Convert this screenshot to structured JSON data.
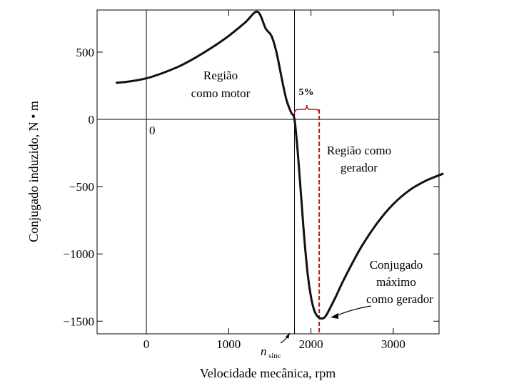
{
  "chart_data": {
    "type": "line",
    "title": "",
    "xlabel": "Velocidade mecânica, rpm",
    "ylabel": "Conjugado induzido, N • m",
    "xlim": [
      -600,
      3600
    ],
    "ylim": [
      -1600,
      820
    ],
    "x_ticks": [
      0,
      1000,
      2000,
      3000
    ],
    "x_tick_labels": [
      "0",
      "1000",
      "2000",
      "3000"
    ],
    "y_ticks": [
      500,
      0,
      -500,
      -1000,
      -1500
    ],
    "y_tick_labels": [
      "500",
      "0",
      "−500",
      "−1000",
      "−1500"
    ],
    "grid": "axes-only",
    "origin_label": "0",
    "sync_speed": 1800,
    "max_gen_speed": 2100,
    "series": [
      {
        "name": "Conjugado induzido",
        "x": [
          -360,
          -200,
          0,
          200,
          400,
          600,
          800,
          1000,
          1200,
          1350,
          1450,
          1520,
          1580,
          1640,
          1700,
          1760,
          1800,
          1840,
          1880,
          1920,
          1960,
          2000,
          2040,
          2080,
          2120,
          2160,
          2200,
          2300,
          2400,
          2600,
          2800,
          3000,
          3200,
          3400,
          3600
        ],
        "y": [
          272,
          282,
          305,
          345,
          395,
          460,
          535,
          620,
          720,
          800,
          675,
          620,
          500,
          320,
          150,
          50,
          0,
          -250,
          -570,
          -890,
          -1150,
          -1320,
          -1420,
          -1465,
          -1480,
          -1475,
          -1440,
          -1320,
          -1190,
          -960,
          -775,
          -630,
          -525,
          -455,
          -405
        ]
      }
    ],
    "annotations": {
      "motor_region": [
        "Região",
        "como motor"
      ],
      "slip": "5%",
      "generator_region": [
        "Região como",
        "gerador"
      ],
      "max_torque": [
        "Conjugado",
        "máximo",
        "como gerador"
      ],
      "n_sync_main": "n",
      "n_sync_sub": "sinc"
    },
    "colors": {
      "curve": "#111111",
      "marker": "#cc1111"
    }
  }
}
